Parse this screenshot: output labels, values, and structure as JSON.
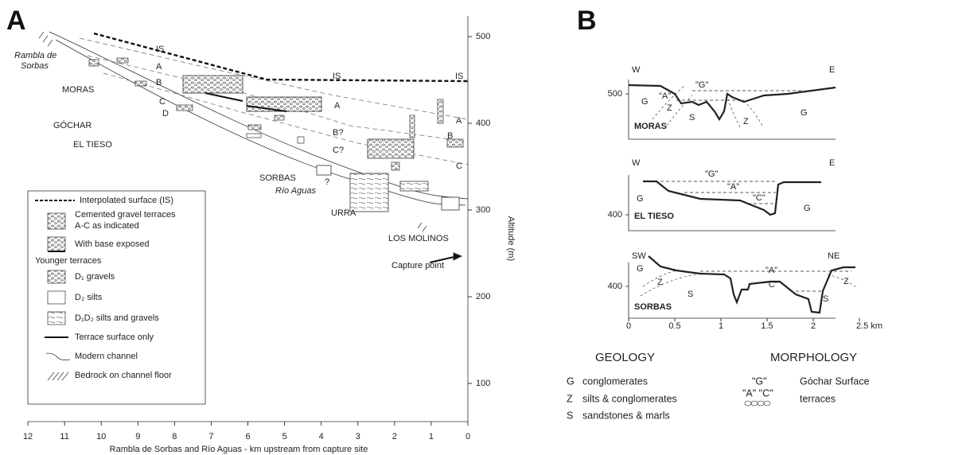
{
  "panel_a": {
    "label": "A",
    "y_axis": {
      "title": "Altitude (m)",
      "ticks": [
        100,
        200,
        300,
        400,
        500
      ]
    },
    "x_axis": {
      "title": "Rambla de Sorbas and Río Aguas - km upstream from capture site",
      "ticks": [
        12,
        11,
        10,
        9,
        8,
        7,
        6,
        5,
        4,
        3,
        2,
        1,
        0
      ]
    },
    "river_label": [
      "Rambla de",
      "Sorbas"
    ],
    "channel_label": "Río Aguas",
    "annotations": [
      "IS",
      "IS",
      "IS",
      "A",
      "A",
      "A",
      "B",
      "B?",
      "B",
      "C",
      "C?",
      "C",
      "D",
      "MORAS",
      "GÓCHAR",
      "EL TIESO",
      "SORBAS",
      "?",
      "URRA",
      "LOS MOLINOS",
      "Capture point"
    ],
    "legend": [
      "Interpolated surface (IS)",
      "Cemented gravel terraces",
      "A-C as indicated",
      "With base exposed",
      "Younger terraces",
      "D₁ gravels",
      "D₂ silts",
      "D₁D₂ silts and gravels",
      "Terrace surface only",
      "Modern channel",
      "Bedrock on channel floor"
    ]
  },
  "panel_b": {
    "label": "B",
    "profiles": [
      {
        "name": "MORAS",
        "left": "W",
        "right": "E",
        "altitude": 500,
        "labels": [
          "G",
          "Z",
          "\"A\"",
          "S",
          "\"G\"",
          "Z",
          "G"
        ]
      },
      {
        "name": "EL TIESO",
        "left": "W",
        "right": "E",
        "altitude": 400,
        "labels": [
          "G",
          "\"G\"",
          "\"A\"",
          "\"C\"",
          "G"
        ]
      },
      {
        "name": "SORBAS",
        "left": "SW",
        "right": "NE",
        "altitude": 400,
        "labels": [
          "G",
          "Z",
          "S",
          "\"A\"",
          "\"C\"",
          "Z",
          "S"
        ]
      }
    ],
    "x_ticks": [
      0,
      0.5,
      1,
      1.5,
      2,
      {
        "value": 2.5,
        "label": "2.5 km"
      }
    ],
    "geology": {
      "title": "GEOLOGY",
      "items": [
        [
          "G",
          "conglomerates"
        ],
        [
          "Z",
          "silts & conglomerates"
        ],
        [
          "S",
          "sandstones & marls"
        ]
      ]
    },
    "morphology": {
      "title": "MORPHOLOGY",
      "items": [
        [
          "\"G\"",
          "Góchar Surface"
        ],
        [
          "\"A\" \"C\"",
          "terraces"
        ]
      ]
    }
  }
}
